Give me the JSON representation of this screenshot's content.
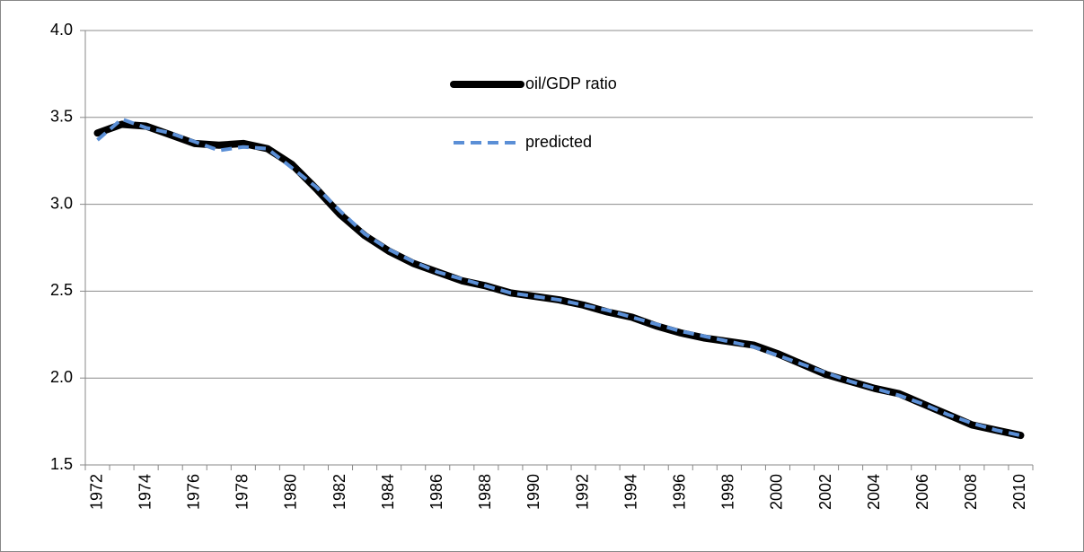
{
  "chart_data": {
    "type": "line",
    "categories": [
      "1972",
      null,
      "1974",
      null,
      "1976",
      null,
      "1978",
      null,
      "1980",
      null,
      "1982",
      null,
      "1984",
      null,
      "1986",
      null,
      "1988",
      null,
      "1990",
      null,
      "1992",
      null,
      "1994",
      null,
      "1996",
      null,
      "1998",
      null,
      "2000",
      null,
      "2002",
      null,
      "2004",
      null,
      "2006",
      null,
      "2008",
      null,
      "2010"
    ],
    "series": [
      {
        "name": "oil/GDP ratio",
        "color": "#000000",
        "style": "solid",
        "values": [
          3.41,
          3.46,
          3.45,
          3.4,
          3.35,
          3.34,
          3.35,
          3.32,
          3.23,
          3.09,
          2.94,
          2.82,
          2.73,
          2.66,
          2.61,
          2.56,
          2.53,
          2.49,
          2.47,
          2.45,
          2.42,
          2.38,
          2.35,
          2.3,
          2.26,
          2.23,
          2.21,
          2.19,
          2.14,
          2.08,
          2.02,
          1.98,
          1.94,
          1.91,
          1.85,
          1.79,
          1.73,
          1.7,
          1.67
        ]
      },
      {
        "name": "predicted",
        "color": "#5b8fd6",
        "style": "dashed",
        "values": [
          3.37,
          3.49,
          3.44,
          3.41,
          3.36,
          3.31,
          3.33,
          3.32,
          3.21,
          3.1,
          2.96,
          2.83,
          2.74,
          2.67,
          2.61,
          2.57,
          2.53,
          2.49,
          2.47,
          2.45,
          2.42,
          2.39,
          2.35,
          2.31,
          2.27,
          2.24,
          2.21,
          2.18,
          2.13,
          2.08,
          2.03,
          1.98,
          1.94,
          1.9,
          1.85,
          1.79,
          1.74,
          1.7,
          1.67
        ]
      }
    ],
    "ylim": [
      1.5,
      4.0
    ],
    "yticks": [
      1.5,
      {
        "value": 2.0,
        "label": "2.0"
      },
      2.5,
      {
        "value": 3.0,
        "label": "3.0"
      },
      3.5,
      {
        "value": 4.0,
        "label": "4.0"
      }
    ],
    "grid": true,
    "legend": "top-center"
  }
}
